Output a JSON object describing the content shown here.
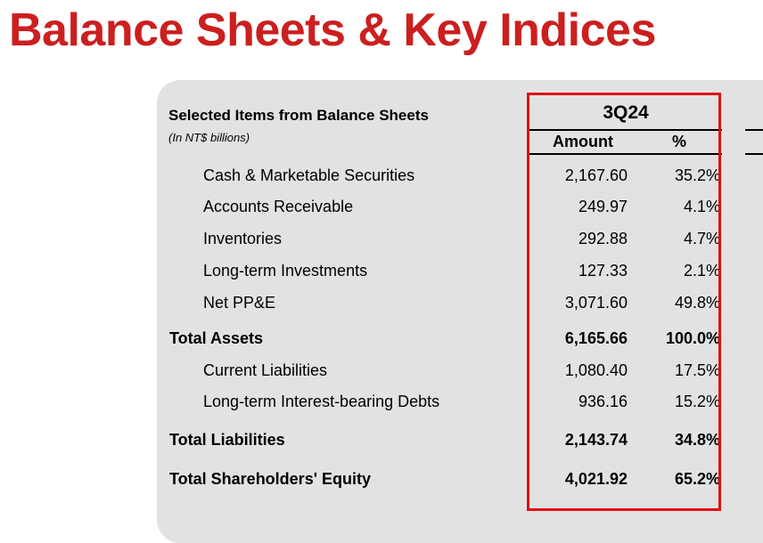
{
  "page": {
    "title": "Balance Sheets & Key Indices"
  },
  "table": {
    "title": "Selected Items from Balance Sheets",
    "subtitle": "(In NT$ billions)",
    "period": "3Q24",
    "columns": {
      "amount": "Amount",
      "percent": "%"
    },
    "rows": [
      {
        "label": "Cash & Marketable Securities",
        "amount": "2,167.60",
        "percent": "35.2%"
      },
      {
        "label": "Accounts Receivable",
        "amount": "249.97",
        "percent": "4.1%"
      },
      {
        "label": "Inventories",
        "amount": "292.88",
        "percent": "4.7%"
      },
      {
        "label": "Long-term Investments",
        "amount": "127.33",
        "percent": "2.1%"
      },
      {
        "label": "Net PP&E",
        "amount": "3,071.60",
        "percent": "49.8%"
      },
      {
        "label": "Total Assets",
        "amount": "6,165.66",
        "percent": "100.0%"
      },
      {
        "label": "Current Liabilities",
        "amount": "1,080.40",
        "percent": "17.5%"
      },
      {
        "label": "Long-term Interest-bearing Debts",
        "amount": "936.16",
        "percent": "15.2%"
      },
      {
        "label": "Total Liabilities",
        "amount": "2,143.74",
        "percent": "34.8%"
      },
      {
        "label": "Total Shareholders' Equity",
        "amount": "4,021.92",
        "percent": "65.2%"
      }
    ]
  },
  "colors": {
    "title": "#cc1f1f",
    "panel": "#e2e2e2",
    "highlight": "#e01010"
  }
}
